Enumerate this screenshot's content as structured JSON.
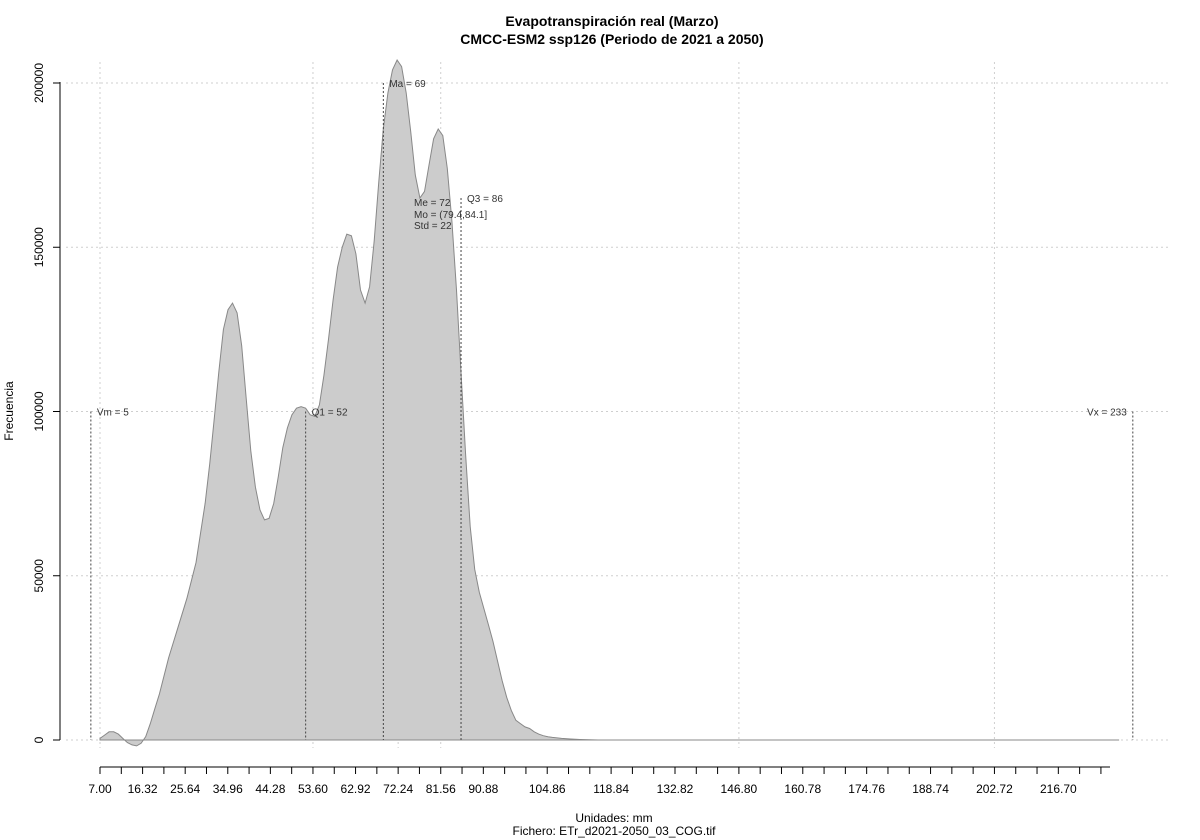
{
  "chart_data": {
    "type": "area",
    "title": "Evapotranspiración real (Marzo)",
    "subtitle": "CMCC-ESM2 ssp126 (Periodo de 2021 a 2050)",
    "xlabel": "Unidades: mm",
    "ylabel": "Frecuencia",
    "footer": "Fichero: ETr_d2021-2050_03_COG.tif",
    "xlim": [
      5,
      236
    ],
    "ylim": [
      -4000,
      208000
    ],
    "grid": true,
    "fill_color": "#cccccc",
    "line_color": "#888888",
    "x_ticks": [
      "7.00",
      "16.32",
      "25.64",
      "34.96",
      "44.28",
      "53.60",
      "62.92",
      "72.24",
      "81.56",
      "90.88",
      "104.86",
      "118.84",
      "132.82",
      "146.80",
      "160.78",
      "174.76",
      "188.74",
      "202.72",
      "216.70"
    ],
    "y_ticks": [
      "0",
      "50000",
      "100000",
      "150000",
      "200000"
    ],
    "y_tick_values": [
      0,
      50000,
      100000,
      150000,
      200000
    ],
    "x": [
      7,
      8,
      9,
      10,
      11,
      12,
      13,
      14,
      15,
      16,
      17,
      18,
      19,
      20,
      22,
      24,
      26,
      28,
      30,
      31,
      32,
      33,
      34,
      35,
      36,
      37,
      38,
      39,
      40,
      41,
      42,
      43,
      44,
      45,
      46,
      47,
      48,
      49,
      50,
      51,
      52,
      53,
      54,
      55,
      56,
      57,
      58,
      59,
      60,
      61,
      62,
      63,
      64,
      65,
      66,
      67,
      68,
      69,
      70,
      71,
      72,
      73,
      74,
      75,
      76,
      77,
      78,
      79,
      80,
      81,
      82,
      83,
      84,
      85,
      86,
      87,
      88,
      89,
      90,
      91,
      92,
      93,
      94,
      95,
      96,
      97,
      98,
      99,
      100,
      101,
      102,
      103,
      104,
      105,
      106,
      108,
      110,
      112,
      114,
      116,
      118,
      120,
      122,
      124,
      126,
      128,
      130,
      132,
      135,
      138,
      142,
      150,
      160,
      180,
      200,
      220,
      230
    ],
    "y": [
      500,
      1500,
      2500,
      2500,
      1800,
      500,
      -800,
      -1500,
      -1800,
      -1000,
      1000,
      5000,
      9500,
      14000,
      25000,
      34000,
      43000,
      54000,
      72000,
      84000,
      98000,
      112000,
      125000,
      131000,
      133000,
      130000,
      120000,
      104000,
      88000,
      77000,
      70000,
      67000,
      67500,
      72000,
      80000,
      89000,
      95000,
      99000,
      101000,
      101500,
      101000,
      99000,
      98500,
      102000,
      111000,
      122000,
      134000,
      144000,
      150000,
      154000,
      153500,
      148000,
      137000,
      133000,
      138000,
      152000,
      170000,
      186000,
      197000,
      204000,
      207000,
      205000,
      197000,
      185000,
      172000,
      165000,
      167000,
      175000,
      183000,
      186000,
      184000,
      174000,
      158000,
      137000,
      112000,
      87000,
      65000,
      52000,
      45000,
      40000,
      35000,
      30000,
      24000,
      18000,
      13000,
      9000,
      6000,
      5000,
      4000,
      3500,
      2500,
      1800,
      1300,
      1000,
      800,
      500,
      300,
      150,
      50,
      0,
      0,
      0,
      0,
      0,
      0,
      0,
      0,
      0,
      0,
      0,
      0,
      0,
      0,
      0,
      0,
      0,
      0
    ],
    "markers": [
      {
        "label": "Vm = 5",
        "x": 5,
        "y": 100000
      },
      {
        "label": "Q1 = 52",
        "x": 52,
        "y": 100000
      },
      {
        "label": "Ma = 69",
        "x": 69,
        "y": 200000
      },
      {
        "label": "Q3 = 86",
        "x": 86,
        "y": 165000
      },
      {
        "label": "Vx = 233",
        "x": 233,
        "y": 100000
      }
    ],
    "stats": [
      "Me = 72",
      "Mo = (79.4,84.1]",
      "Std = 22"
    ]
  }
}
